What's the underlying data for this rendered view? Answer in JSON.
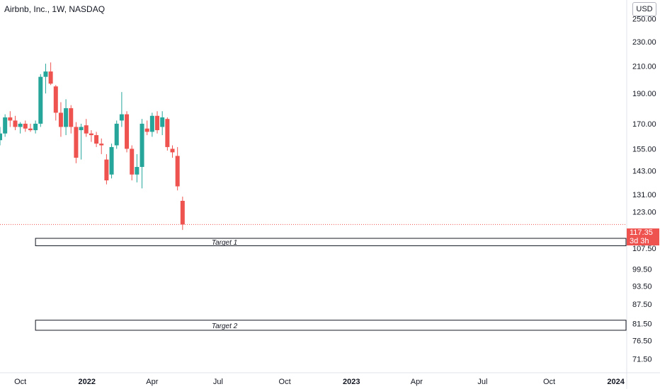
{
  "header": {
    "title": "Airbnb, Inc., 1W, NASDAQ",
    "currency": "USD"
  },
  "last_price": {
    "value": "117.35",
    "countdown": "3d 3h"
  },
  "colors": {
    "up": "#26a69a",
    "down": "#ef5350",
    "price_line": "#ef5350",
    "axis_text": "#131722",
    "box_border": "#131722"
  },
  "chart_data": {
    "type": "candlestick",
    "symbol": "Airbnb, Inc., 1W, NASDAQ",
    "y_axis_labels": [
      "250.00",
      "230.00",
      "210.00",
      "190.00",
      "170.00",
      "155.00",
      "143.00",
      "131.00",
      "123.00",
      "107.50",
      "99.50",
      "93.50",
      "87.50",
      "81.50",
      "76.50",
      "71.50"
    ],
    "y_axis_scale": "log",
    "y_range": [
      68,
      268
    ],
    "x_axis_labels": [
      "Oct",
      "2022",
      "Apr",
      "Jul",
      "Oct",
      "2023",
      "Apr",
      "Jul",
      "Oct",
      "2024"
    ],
    "x_label_dates": [
      "2021-10-01",
      "2022-01-01",
      "2022-04-01",
      "2022-07-01",
      "2022-10-01",
      "2023-01-01",
      "2023-04-01",
      "2023-07-01",
      "2023-10-01",
      "2024-01-01"
    ],
    "x_range": [
      "2021-09-03",
      "2024-01-15"
    ],
    "last_price": 117.35,
    "candles": [
      {
        "date": "2021-09-03",
        "o": 160,
        "h": 168,
        "l": 157,
        "c": 164
      },
      {
        "date": "2021-09-10",
        "o": 164,
        "h": 176,
        "l": 162,
        "c": 174
      },
      {
        "date": "2021-09-17",
        "o": 174,
        "h": 178,
        "l": 168,
        "c": 172
      },
      {
        "date": "2021-09-24",
        "o": 172,
        "h": 175,
        "l": 166,
        "c": 168
      },
      {
        "date": "2021-10-01",
        "o": 168,
        "h": 171,
        "l": 164,
        "c": 170
      },
      {
        "date": "2021-10-08",
        "o": 170,
        "h": 172,
        "l": 165,
        "c": 167
      },
      {
        "date": "2021-10-15",
        "o": 167,
        "h": 170,
        "l": 165,
        "c": 166
      },
      {
        "date": "2021-10-22",
        "o": 166,
        "h": 172,
        "l": 164,
        "c": 170
      },
      {
        "date": "2021-10-29",
        "o": 170,
        "h": 204,
        "l": 168,
        "c": 202
      },
      {
        "date": "2021-11-05",
        "o": 202,
        "h": 212,
        "l": 190,
        "c": 206
      },
      {
        "date": "2021-11-12",
        "o": 206,
        "h": 213,
        "l": 196,
        "c": 197
      },
      {
        "date": "2021-11-19",
        "o": 195,
        "h": 196,
        "l": 172,
        "c": 177
      },
      {
        "date": "2021-11-26",
        "o": 177,
        "h": 184,
        "l": 162,
        "c": 168
      },
      {
        "date": "2021-12-03",
        "o": 168,
        "h": 186,
        "l": 163,
        "c": 180
      },
      {
        "date": "2021-12-10",
        "o": 180,
        "h": 182,
        "l": 164,
        "c": 168
      },
      {
        "date": "2021-12-17",
        "o": 168,
        "h": 171,
        "l": 147,
        "c": 150
      },
      {
        "date": "2021-12-24",
        "o": 166,
        "h": 170,
        "l": 149,
        "c": 168
      },
      {
        "date": "2021-12-31",
        "o": 169,
        "h": 173,
        "l": 162,
        "c": 164
      },
      {
        "date": "2022-01-07",
        "o": 164,
        "h": 166,
        "l": 159,
        "c": 163
      },
      {
        "date": "2022-01-14",
        "o": 163,
        "h": 165,
        "l": 156,
        "c": 158
      },
      {
        "date": "2022-01-21",
        "o": 158,
        "h": 161,
        "l": 152,
        "c": 157
      },
      {
        "date": "2022-01-28",
        "o": 149,
        "h": 152,
        "l": 136,
        "c": 138
      },
      {
        "date": "2022-02-04",
        "o": 141,
        "h": 158,
        "l": 139,
        "c": 156
      },
      {
        "date": "2022-02-11",
        "o": 157,
        "h": 172,
        "l": 155,
        "c": 170
      },
      {
        "date": "2022-02-18",
        "o": 172,
        "h": 191,
        "l": 168,
        "c": 176
      },
      {
        "date": "2022-02-25",
        "o": 176,
        "h": 178,
        "l": 153,
        "c": 155
      },
      {
        "date": "2022-03-04",
        "o": 155,
        "h": 157,
        "l": 138,
        "c": 141
      },
      {
        "date": "2022-03-11",
        "o": 141,
        "h": 152,
        "l": 137,
        "c": 145
      },
      {
        "date": "2022-03-18",
        "o": 145,
        "h": 173,
        "l": 134,
        "c": 170
      },
      {
        "date": "2022-03-25",
        "o": 167,
        "h": 172,
        "l": 163,
        "c": 165
      },
      {
        "date": "2022-04-01",
        "o": 165,
        "h": 177,
        "l": 162,
        "c": 175
      },
      {
        "date": "2022-04-08",
        "o": 175,
        "h": 178,
        "l": 164,
        "c": 166
      },
      {
        "date": "2022-04-15",
        "o": 168,
        "h": 178,
        "l": 163,
        "c": 174
      },
      {
        "date": "2022-04-22",
        "o": 173,
        "h": 174,
        "l": 154,
        "c": 156
      },
      {
        "date": "2022-04-29",
        "o": 155,
        "h": 157,
        "l": 150,
        "c": 153
      },
      {
        "date": "2022-05-06",
        "o": 151,
        "h": 156,
        "l": 133,
        "c": 135
      },
      {
        "date": "2022-05-13",
        "o": 128,
        "h": 130,
        "l": 115,
        "c": 117.35
      }
    ],
    "annotations": [
      {
        "label": "Target 1",
        "y_low": 108.5,
        "y_high": 111.5,
        "x_start": "2021-10-22",
        "x_end": "2024-01-15"
      },
      {
        "label": "Target 2",
        "y_low": 79.5,
        "y_high": 82.5,
        "x_start": "2021-10-22",
        "x_end": "2024-01-15"
      }
    ],
    "grid": false,
    "legend": "none"
  }
}
